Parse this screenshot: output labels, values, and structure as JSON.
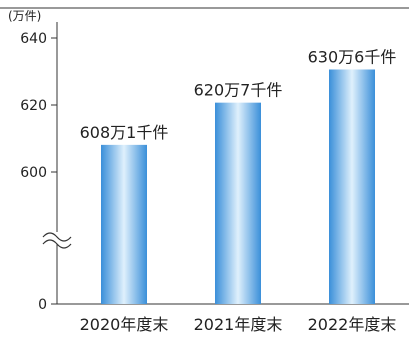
{
  "chart_data": {
    "type": "bar",
    "unit_label": "(万件)",
    "categories": [
      "2020年度末",
      "2021年度末",
      "2022年度末"
    ],
    "values": [
      608.1,
      620.7,
      630.6
    ],
    "data_labels": [
      "608万1千件",
      "620万7千件",
      "630万6千件"
    ],
    "y_ticks": [
      {
        "value": 0,
        "label": "0"
      },
      {
        "value": 600,
        "label": "600"
      },
      {
        "value": 620,
        "label": "620"
      },
      {
        "value": 640,
        "label": "640"
      }
    ],
    "ylim": [
      0,
      640
    ],
    "axis_break": "between 0 and 600",
    "grid": false,
    "title": "",
    "xlabel": "",
    "ylabel": "",
    "colors": {
      "bar_edge": "#3a8fd9",
      "bar_center": "#dff0fc",
      "axis": "#333333"
    }
  }
}
